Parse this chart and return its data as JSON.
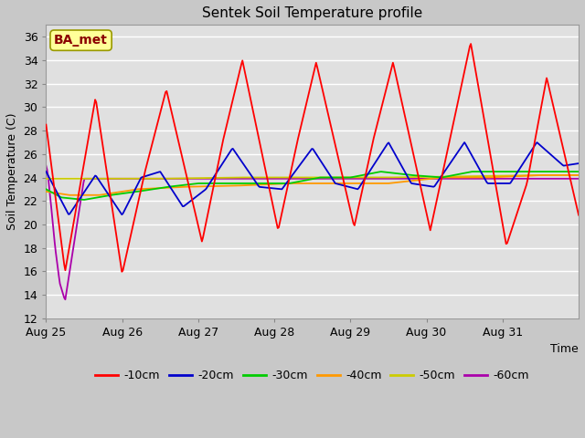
{
  "title": "Sentek Soil Temperature profile",
  "xlabel": "Time",
  "ylabel": "Soil Temperature (C)",
  "annotation": "BA_met",
  "ylim": [
    12,
    37
  ],
  "yticks": [
    12,
    14,
    16,
    18,
    20,
    22,
    24,
    26,
    28,
    30,
    32,
    34,
    36
  ],
  "xtick_labels": [
    "Aug 25",
    "Aug 26",
    "Aug 27",
    "Aug 28",
    "Aug 29",
    "Aug 30",
    "Aug 31"
  ],
  "fig_bg_color": "#c8c8c8",
  "plot_bg_color": "#e0e0e0",
  "grid_color": "#ffffff",
  "series_colors": {
    "-10cm": "#ff0000",
    "-20cm": "#0000cc",
    "-30cm": "#00cc00",
    "-40cm": "#ff9900",
    "-50cm": "#cccc00",
    "-60cm": "#aa00aa"
  },
  "key_10_days": [
    0,
    0.25,
    0.65,
    1.0,
    1.3,
    1.58,
    2.05,
    2.32,
    2.58,
    3.05,
    3.3,
    3.55,
    4.05,
    4.3,
    4.56,
    5.05,
    5.3,
    5.58,
    6.05,
    6.32,
    6.58,
    7.0
  ],
  "key_10_vals": [
    28.5,
    16.0,
    30.8,
    15.8,
    24.5,
    31.5,
    18.5,
    27.0,
    34.0,
    19.5,
    27.0,
    33.8,
    19.8,
    27.2,
    33.8,
    19.5,
    27.0,
    35.5,
    18.2,
    23.5,
    32.5,
    20.8
  ],
  "key_20_days": [
    0,
    0.3,
    0.65,
    1.0,
    1.25,
    1.5,
    1.8,
    2.1,
    2.45,
    2.8,
    3.1,
    3.5,
    3.8,
    4.1,
    4.5,
    4.8,
    5.1,
    5.5,
    5.8,
    6.1,
    6.45,
    6.8,
    7.0
  ],
  "key_20_vals": [
    24.5,
    20.8,
    24.2,
    20.8,
    24.0,
    24.5,
    21.5,
    23.0,
    26.5,
    23.2,
    23.0,
    26.5,
    23.5,
    23.0,
    27.0,
    23.5,
    23.2,
    27.0,
    23.5,
    23.5,
    27.0,
    25.0,
    25.2
  ],
  "key_30_days": [
    0,
    0.2,
    0.5,
    0.85,
    1.2,
    1.6,
    2.0,
    2.4,
    2.8,
    3.2,
    3.6,
    4.0,
    4.4,
    4.8,
    5.2,
    5.6,
    6.0,
    6.4,
    6.8,
    7.0
  ],
  "key_30_vals": [
    23.0,
    22.3,
    22.1,
    22.5,
    22.8,
    23.2,
    23.5,
    23.5,
    23.5,
    23.5,
    24.0,
    24.0,
    24.5,
    24.2,
    24.0,
    24.5,
    24.5,
    24.5,
    24.5,
    24.5
  ],
  "key_40_days": [
    0,
    0.3,
    0.7,
    1.2,
    1.8,
    2.5,
    3.2,
    3.8,
    4.5,
    5.2,
    5.8,
    6.5,
    7.0
  ],
  "key_40_vals": [
    22.8,
    22.5,
    22.5,
    23.0,
    23.2,
    23.3,
    23.5,
    23.5,
    23.5,
    24.0,
    24.0,
    24.2,
    24.2
  ],
  "key_50_days": [
    0,
    0.5,
    1.5,
    2.5,
    3.5,
    4.5,
    5.5,
    6.5,
    7.0
  ],
  "key_50_vals": [
    23.9,
    23.9,
    23.9,
    24.0,
    24.0,
    24.0,
    24.1,
    24.2,
    24.2
  ],
  "key_60_days": [
    0,
    0.02,
    0.06,
    0.12,
    0.18,
    0.25,
    0.5,
    1.0,
    2.0,
    3.0,
    4.0,
    5.0,
    6.0,
    7.0
  ],
  "key_60_vals": [
    25.0,
    24.5,
    22.0,
    18.0,
    15.0,
    13.5,
    23.9,
    23.9,
    23.9,
    23.9,
    23.9,
    23.9,
    23.9,
    23.9
  ],
  "n_points": 500
}
